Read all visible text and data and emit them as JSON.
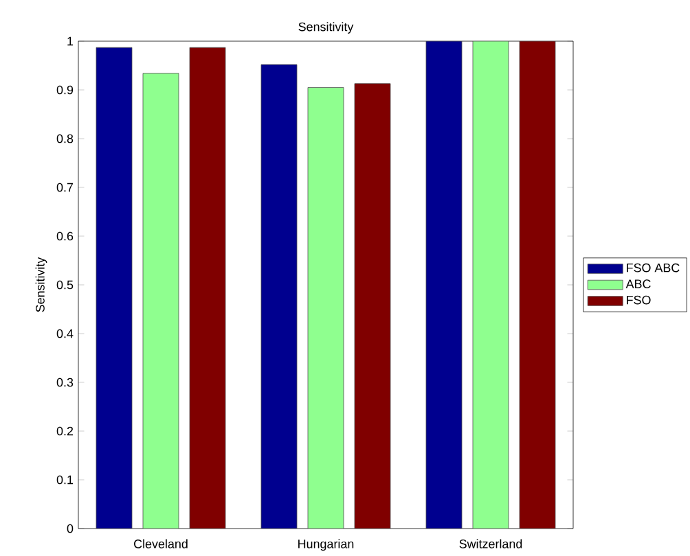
{
  "chart_data": {
    "type": "bar",
    "title": "Sensitivity",
    "ylabel": "Sensitivity",
    "categories": [
      "Cleveland",
      "Hungarian",
      "Switzerland"
    ],
    "series": [
      {
        "name": "FSO ABC",
        "color": "#00008f",
        "values": [
          0.987,
          0.952,
          1
        ]
      },
      {
        "name": "ABC",
        "color": "#8fff8f",
        "values": [
          0.934,
          0.905,
          1
        ]
      },
      {
        "name": "FSO",
        "color": "#800000",
        "values": [
          0.987,
          0.913,
          1
        ]
      }
    ],
    "ylim": [
      0,
      1
    ],
    "yticks": [
      0,
      0.1,
      0.2,
      0.3,
      0.4,
      0.5,
      0.6,
      0.7,
      0.8,
      0.9,
      1
    ],
    "grid": false,
    "legend": "right"
  }
}
